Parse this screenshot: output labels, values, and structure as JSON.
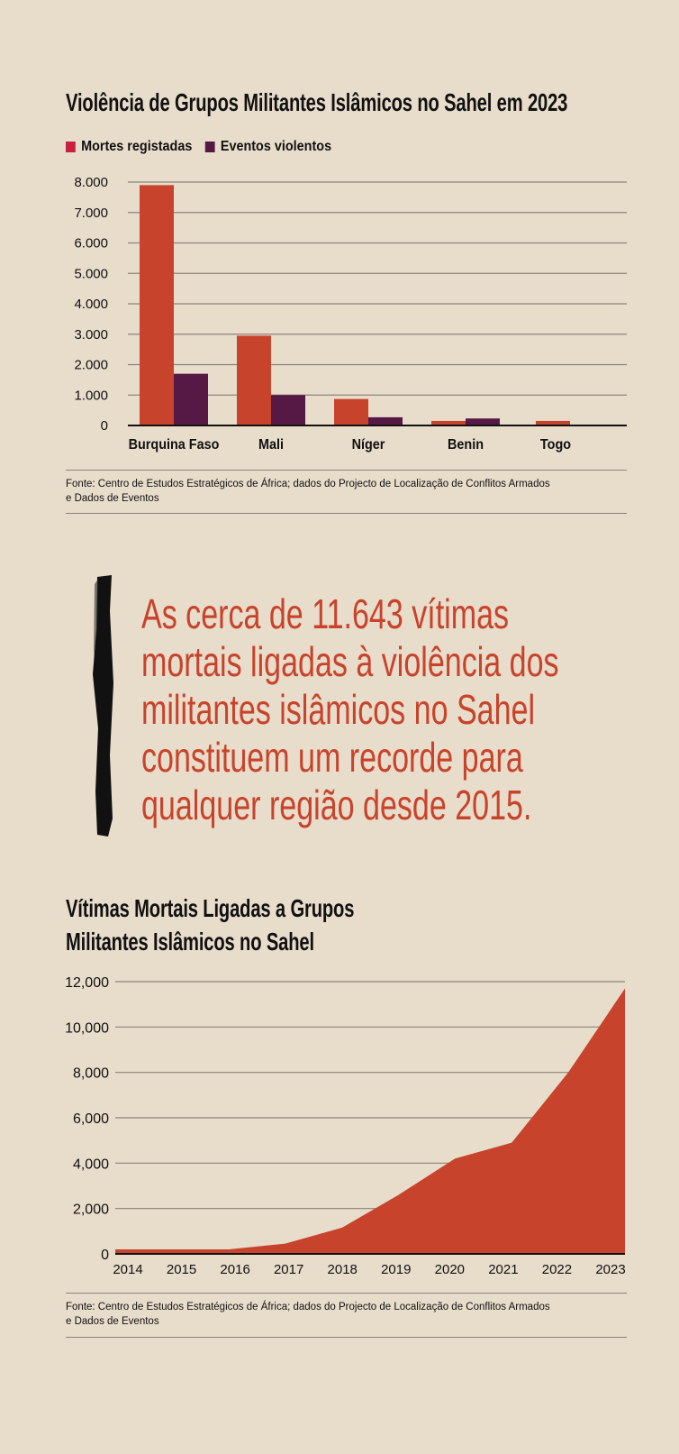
{
  "chart_data": [
    {
      "type": "bar",
      "title": "Violência de Grupos Militantes Islâmicos no Sahel em 2023",
      "categories": [
        "Burquina Faso",
        "Mali",
        "Níger",
        "Benin",
        "Togo"
      ],
      "series": [
        {
          "name": "Mortes registadas",
          "values": [
            7900,
            2950,
            870,
            150,
            150
          ],
          "color": "#c8432b",
          "legend_color": "#c8203f"
        },
        {
          "name": "Eventos violentos",
          "values": [
            1700,
            1000,
            270,
            230,
            0
          ],
          "color": "#561845",
          "legend_color": "#561845"
        }
      ],
      "yticks": [
        "0",
        "1.000",
        "2.000",
        "3.000",
        "4.000",
        "5.000",
        "6.000",
        "7.000",
        "8.000"
      ],
      "ylim": [
        0,
        8000
      ],
      "legend": "top-left",
      "grid": true,
      "source": "Fonte: Centro de Estudos Estratégicos de África; dados do Projecto de Localização de Conflitos Armados e Dados de Eventos"
    },
    {
      "type": "area",
      "title": "Vítimas Mortais Ligadas a Grupos Militantes Islâmicos no Sahel",
      "title_lines": [
        "Vítimas Mortais Ligadas a Grupos",
        "Militantes Islâmicos no Sahel"
      ],
      "x": [
        "2014",
        "2015",
        "2016",
        "2017",
        "2018",
        "2019",
        "2020",
        "2021",
        "2022",
        "2023"
      ],
      "values": [
        200,
        200,
        200,
        450,
        1150,
        2600,
        4200,
        4900,
        8000,
        11700
      ],
      "color": "#c8432b",
      "yticks": [
        "0",
        "2,000",
        "4,000",
        "6,000",
        "8,000",
        "10,000",
        "12,000"
      ],
      "ylim": [
        0,
        12000
      ],
      "grid": true,
      "source": "Fonte: Centro de Estudos Estratégicos de África; dados do Projecto de Localização de Conflitos Armados e Dados de Eventos"
    }
  ],
  "chart1": {
    "title": "Violência de Grupos Militantes Islâmicos no Sahel em 2023",
    "legend": [
      "Mortes registadas",
      "Eventos violentos"
    ],
    "source_line1": "Fonte: Centro de Estudos Estratégicos de África; dados do Projecto de Localização de Conflitos Armados",
    "source_line2": "e Dados de Eventos"
  },
  "quote": {
    "lines": [
      "As cerca de 11.643 vítimas",
      "mortais ligadas à violência dos",
      "militantes islâmicos no Sahel",
      "constituem um recorde para",
      "qualquer região desde 2015."
    ]
  },
  "chart2": {
    "title_line1": "Vítimas Mortais Ligadas a Grupos",
    "title_line2": "Militantes Islâmicos no Sahel",
    "source_line1": "Fonte: Centro de Estudos Estratégicos de África; dados do Projecto de Localização de Conflitos Armados",
    "source_line2": "e Dados de Eventos"
  }
}
